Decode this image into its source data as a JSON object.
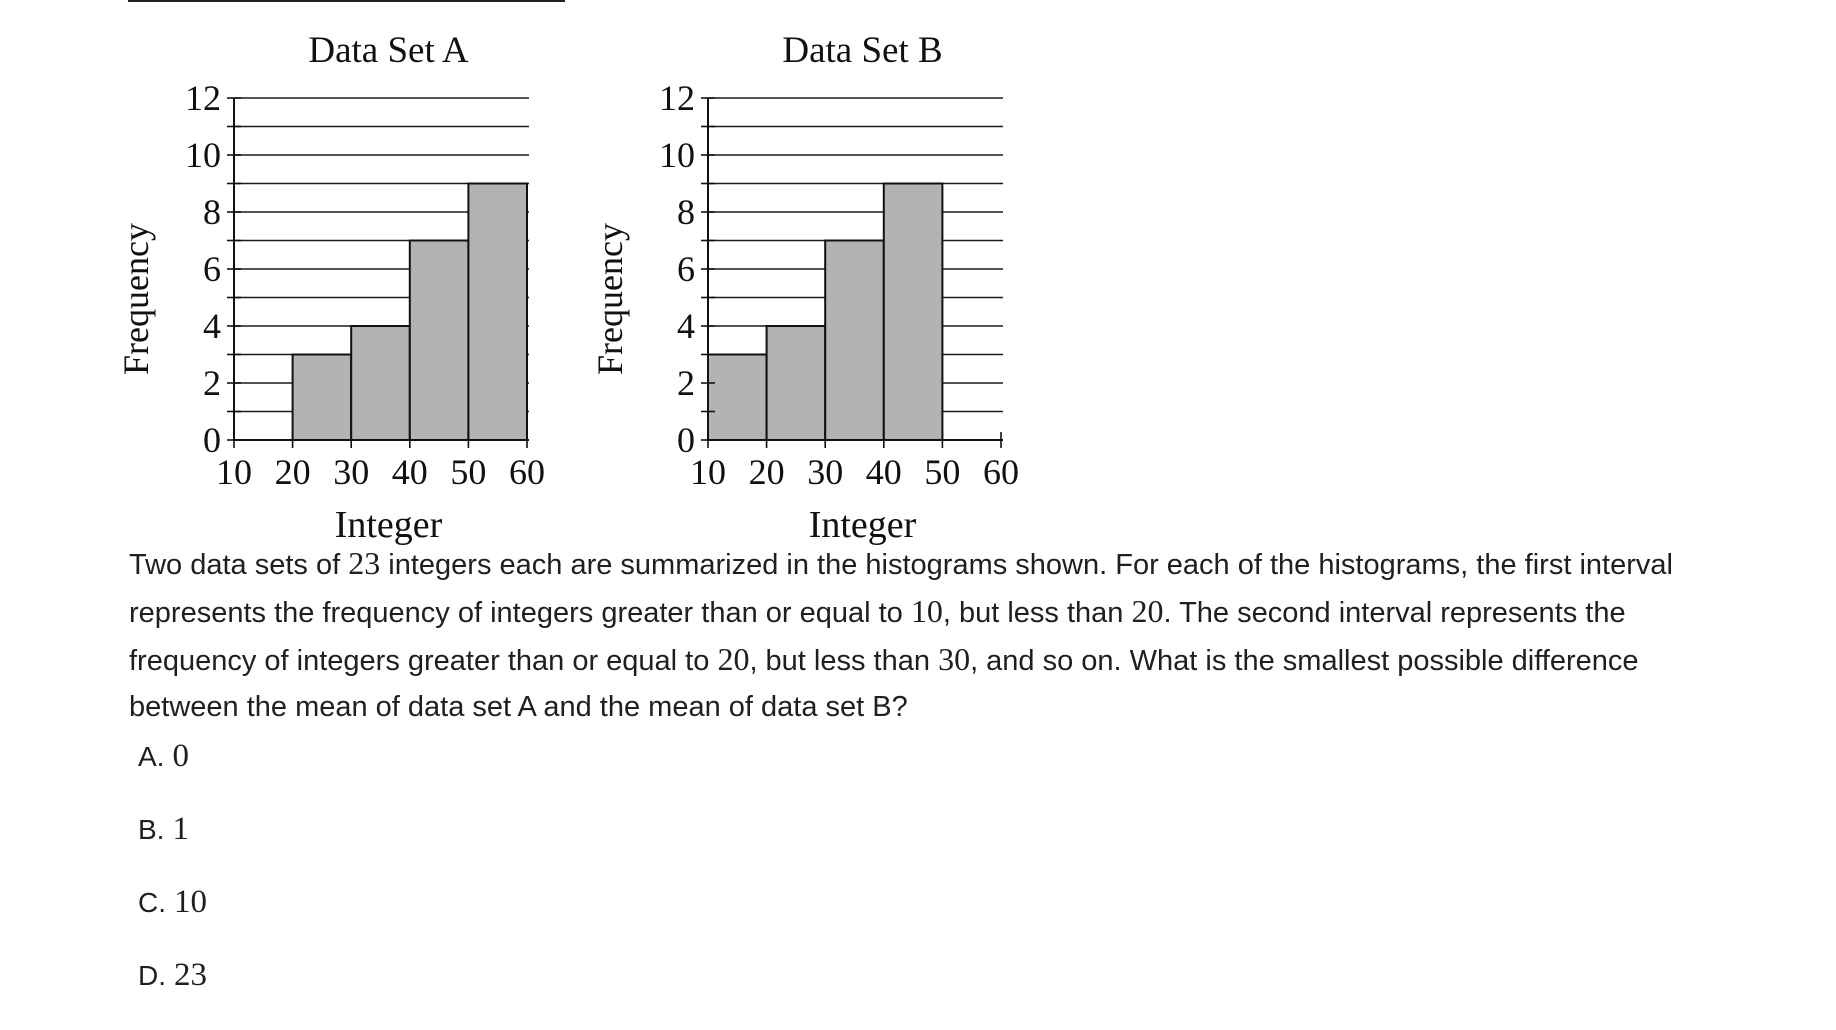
{
  "chart_data": [
    {
      "type": "bar",
      "title": "Data Set A",
      "xlabel": "Integer",
      "ylabel": "Frequency",
      "x_ticks": [
        "10",
        "20",
        "30",
        "40",
        "50",
        "60"
      ],
      "y_ticks": [
        "0",
        "2",
        "4",
        "6",
        "8",
        "10",
        "12"
      ],
      "ylim": [
        0,
        12
      ],
      "xlim": [
        10,
        60
      ],
      "bins": [
        [
          10,
          20
        ],
        [
          20,
          30
        ],
        [
          30,
          40
        ],
        [
          40,
          50
        ],
        [
          50,
          60
        ]
      ],
      "values": [
        0,
        3,
        4,
        7,
        9
      ],
      "bar_color": "#b3b3b3",
      "grid": true
    },
    {
      "type": "bar",
      "title": "Data Set B",
      "xlabel": "Integer",
      "ylabel": "Frequency",
      "x_ticks": [
        "10",
        "20",
        "30",
        "40",
        "50",
        "60"
      ],
      "y_ticks": [
        "0",
        "2",
        "4",
        "6",
        "8",
        "10",
        "12"
      ],
      "ylim": [
        0,
        12
      ],
      "xlim": [
        10,
        60
      ],
      "bins": [
        [
          10,
          20
        ],
        [
          20,
          30
        ],
        [
          30,
          40
        ],
        [
          40,
          50
        ],
        [
          50,
          60
        ]
      ],
      "values": [
        3,
        4,
        7,
        9,
        0
      ],
      "bar_color": "#b3b3b3",
      "grid": true
    }
  ],
  "question": {
    "parts": [
      "Two data sets of ",
      "23",
      " integers each are summarized in the histograms shown. For each of the histograms, the first interval represents the frequency of integers greater than or equal to ",
      "10",
      ", but less than ",
      "20",
      ". The second interval represents the frequency of integers greater than or equal to ",
      "20",
      ", but less than ",
      "30",
      ", and so on. What is the smallest possible difference between the mean of data set A and the mean of data set B?"
    ]
  },
  "choices": [
    {
      "letter": "A.",
      "value": "0"
    },
    {
      "letter": "B.",
      "value": "1"
    },
    {
      "letter": "C.",
      "value": "10"
    },
    {
      "letter": "D.",
      "value": "23"
    }
  ]
}
